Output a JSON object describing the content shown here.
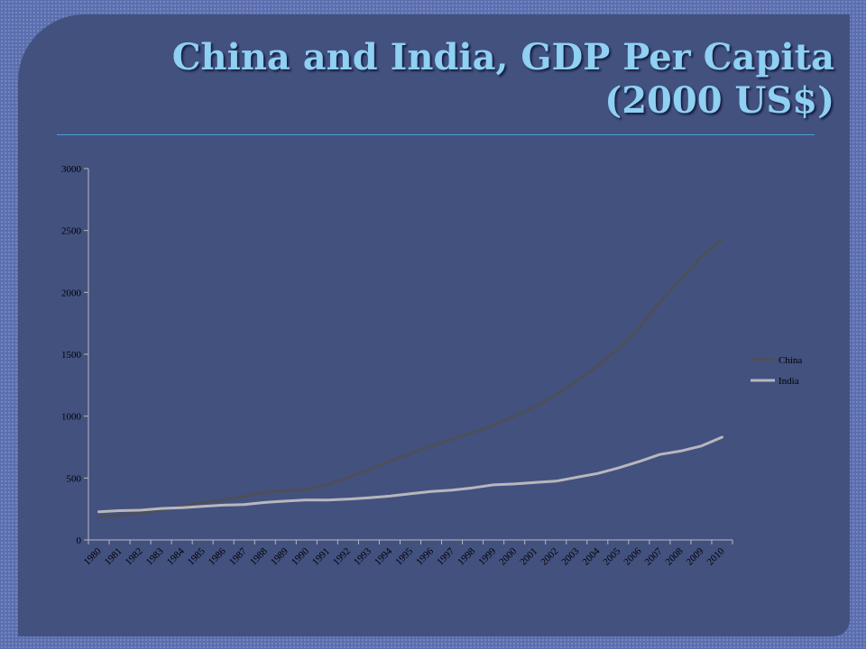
{
  "slide": {
    "title_line1": "China and India, GDP Per Capita",
    "title_line2": "(2000 US$)"
  },
  "colors": {
    "slide_bg": "#43517f",
    "outer_bg": "#5a6eb0",
    "title": "#8fd0f3",
    "rule": "#4d9ed6",
    "china": "#4d4f58",
    "india": "#b7b7bd",
    "axis": "#b9b9bf"
  },
  "chart_data": {
    "type": "line",
    "title": "",
    "xlabel": "",
    "ylabel": "",
    "ylim": [
      0,
      3000
    ],
    "yticks": [
      0,
      500,
      1000,
      1500,
      2000,
      2500,
      3000
    ],
    "grid": false,
    "legend_position": "right",
    "x": [
      "1980",
      "1981",
      "1982",
      "1983",
      "1984",
      "1985",
      "1986",
      "1987",
      "1988",
      "1989",
      "1990",
      "1991",
      "1992",
      "1993",
      "1994",
      "1995",
      "1996",
      "1997",
      "1998",
      "1999",
      "2000",
      "2001",
      "2002",
      "2003",
      "2004",
      "2005",
      "2006",
      "2007",
      "2008",
      "2009",
      "2010"
    ],
    "series": [
      {
        "name": "China",
        "color": "#4d4f58",
        "values": [
          186,
          202,
          217,
          238,
          270,
          302,
          325,
          352,
          386,
          397,
          406,
          447,
          505,
          568,
          635,
          697,
          758,
          813,
          867,
          925,
          1000,
          1078,
          1172,
          1283,
          1406,
          1543,
          1712,
          1923,
          2101,
          2289,
          2425
        ]
      },
      {
        "name": "India",
        "color": "#b7b7bd",
        "values": [
          228,
          237,
          240,
          254,
          260,
          271,
          281,
          286,
          303,
          314,
          323,
          322,
          330,
          341,
          354,
          373,
          392,
          403,
          421,
          445,
          452,
          464,
          475,
          506,
          537,
          581,
          633,
          690,
          718,
          759,
          830
        ]
      }
    ]
  }
}
